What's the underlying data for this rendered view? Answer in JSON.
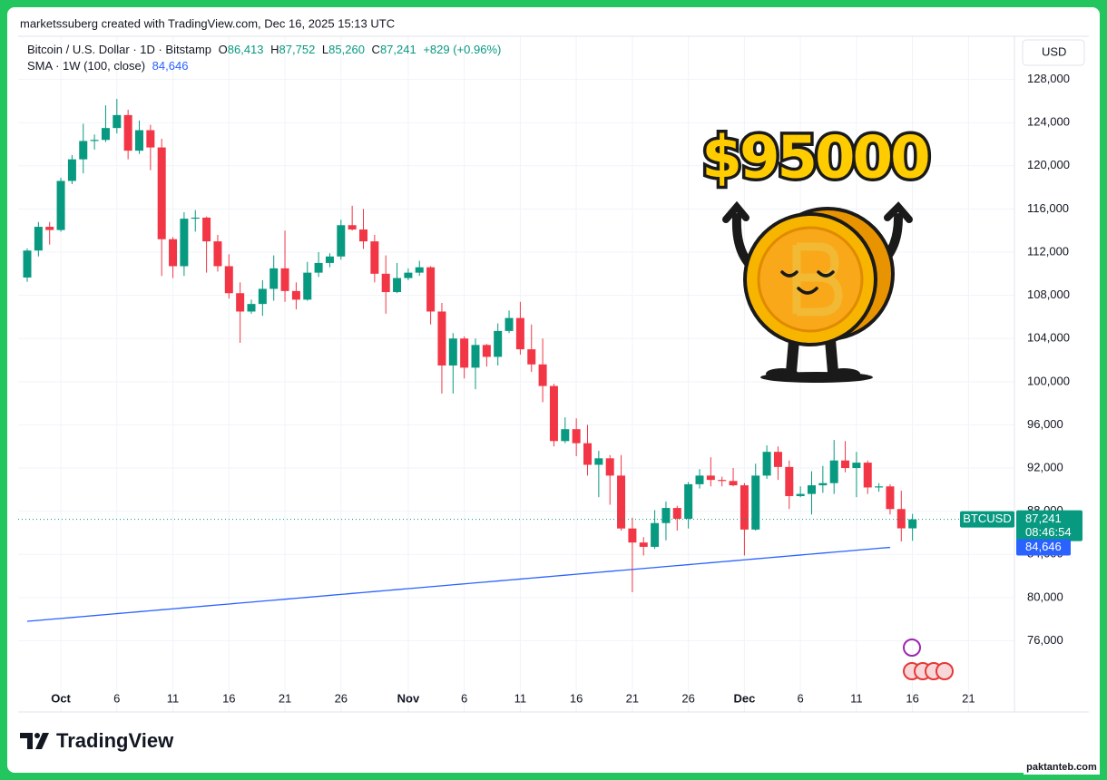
{
  "header": {
    "credit": "marketssuberg created with TradingView.com, Dec 16, 2025 15:13 UTC",
    "currency": "USD",
    "brand": "TradingView",
    "watermark": "paktanteb.com",
    "sticker": "$95000"
  },
  "legend": {
    "symbol": "Bitcoin / U.S. Dollar · 1D · Bitstamp",
    "open_label": "O",
    "open": "86,413",
    "high_label": "H",
    "high": "87,752",
    "low_label": "L",
    "low": "85,260",
    "close_label": "C",
    "close": "87,241",
    "change": "+829 (+0.96%)",
    "sma_value": "84,646"
  },
  "price_tag": {
    "symbol": "BTCUSD",
    "countdown": "08:46:54"
  },
  "chart_data": {
    "type": "candlestick",
    "categories": [
      null,
      null,
      null,
      "Oct",
      null,
      null,
      null,
      null,
      "6",
      null,
      null,
      null,
      null,
      "11",
      null,
      null,
      null,
      null,
      "16",
      null,
      null,
      null,
      null,
      "21",
      null,
      null,
      null,
      null,
      "26",
      null,
      null,
      null,
      null,
      null,
      "Nov",
      null,
      null,
      null,
      null,
      "6",
      null,
      null,
      null,
      null,
      "11",
      null,
      null,
      null,
      null,
      "16",
      null,
      null,
      null,
      null,
      "21",
      null,
      null,
      null,
      null,
      "26",
      null,
      null,
      null,
      null,
      "Dec",
      null,
      null,
      null,
      null,
      "6",
      null,
      null,
      null,
      null,
      "11",
      null,
      null,
      null,
      null,
      "16",
      null,
      null,
      null,
      null,
      "21"
    ],
    "open": [
      109650,
      112150,
      114350,
      114050,
      118600,
      120600,
      122300,
      122400,
      123500,
      124700,
      121400,
      123300,
      121700,
      113200,
      110700,
      115100,
      115200,
      113000,
      110700,
      108200,
      106500,
      107200,
      108600,
      110500,
      108400,
      107600,
      110100,
      111000,
      111600,
      114500,
      114100,
      113000,
      110000,
      108300,
      109600,
      110100,
      110600,
      106500,
      101500,
      104000,
      101300,
      103400,
      102300,
      104700,
      105900,
      103000,
      101600,
      99600,
      94500,
      95600,
      94300,
      92300,
      92900,
      91300,
      86400,
      85100,
      84700,
      86900,
      88300,
      87300,
      90500,
      91300,
      90900,
      90800,
      90400,
      86300,
      91300,
      93500,
      92100,
      89400,
      89600,
      90400,
      90600,
      92700,
      92000,
      92500,
      90200,
      90300,
      88200,
      86413,
      null,
      null,
      null,
      null,
      null
    ],
    "high": [
      112350,
      114800,
      114800,
      118900,
      121000,
      123900,
      122900,
      125600,
      126200,
      125200,
      124200,
      123800,
      122500,
      113400,
      115700,
      115900,
      115300,
      113600,
      111800,
      109200,
      107600,
      109400,
      111700,
      114000,
      109200,
      111100,
      112000,
      111900,
      115000,
      116300,
      116000,
      113600,
      111700,
      111000,
      110500,
      111200,
      110700,
      107300,
      104500,
      104200,
      104000,
      103500,
      105400,
      106600,
      107400,
      105300,
      104000,
      99800,
      96700,
      96600,
      96000,
      93600,
      93200,
      93200,
      87400,
      85600,
      88100,
      88900,
      88500,
      90700,
      91900,
      93000,
      91200,
      92000,
      90600,
      92400,
      94100,
      94000,
      92700,
      90300,
      91700,
      92200,
      94600,
      94500,
      93500,
      92700,
      90600,
      90500,
      89900,
      87752,
      null,
      null,
      null,
      null,
      null
    ],
    "low": [
      109250,
      111600,
      112700,
      113900,
      118300,
      119300,
      121500,
      122200,
      123000,
      120600,
      121100,
      119600,
      109800,
      109600,
      109800,
      113900,
      110100,
      110200,
      107700,
      103600,
      106300,
      106100,
      107500,
      107400,
      106700,
      107500,
      109700,
      110600,
      111300,
      114000,
      112300,
      109200,
      106300,
      108200,
      109400,
      109800,
      105300,
      98900,
      98900,
      100300,
      99300,
      101400,
      101500,
      104500,
      102500,
      100900,
      98100,
      94000,
      94300,
      93100,
      91300,
      89300,
      88600,
      86200,
      80500,
      83900,
      84500,
      85300,
      86200,
      86400,
      90100,
      90300,
      90300,
      90300,
      83900,
      86200,
      91000,
      90900,
      88200,
      89300,
      87700,
      89700,
      89600,
      91600,
      89300,
      89600,
      89800,
      87700,
      85200,
      85260,
      null,
      null,
      null,
      null,
      null
    ],
    "close": [
      112150,
      114350,
      114050,
      118600,
      120600,
      122300,
      122400,
      123500,
      124700,
      121400,
      123300,
      121700,
      113200,
      110700,
      115100,
      115200,
      113000,
      110700,
      108200,
      106500,
      107200,
      108600,
      110500,
      108400,
      107600,
      110100,
      111000,
      111600,
      114500,
      114100,
      113000,
      110000,
      108300,
      109600,
      110100,
      110600,
      106500,
      101500,
      104000,
      101300,
      103400,
      102300,
      104700,
      105900,
      103000,
      101600,
      99600,
      94500,
      95600,
      94300,
      92300,
      92900,
      91300,
      86400,
      85100,
      84700,
      86900,
      88300,
      87300,
      90500,
      91300,
      90900,
      90800,
      90400,
      86300,
      91300,
      93500,
      92100,
      89400,
      89600,
      90400,
      90600,
      92700,
      92000,
      92500,
      90200,
      90300,
      88200,
      86413,
      87241,
      null,
      null,
      null,
      null,
      null
    ],
    "up_color": "#089981",
    "down_color": "#f23645",
    "sma": {
      "name": "SMA · 1W (100, close)",
      "color": "#2962ff",
      "values": [
        77800,
        77889,
        77978,
        78067,
        78156,
        78245,
        78334,
        78423,
        78512,
        78601,
        78690,
        78779,
        78868,
        78957,
        79046,
        79135,
        79224,
        79313,
        79402,
        79491,
        79580,
        79669,
        79758,
        79847,
        79936,
        80025,
        80114,
        80203,
        80292,
        80381,
        80470,
        80559,
        80648,
        80737,
        80826,
        80915,
        81004,
        81093,
        81182,
        81271,
        81360,
        81449,
        81538,
        81627,
        81716,
        81805,
        81894,
        81983,
        82072,
        82161,
        82250,
        82339,
        82428,
        82517,
        82606,
        82695,
        82784,
        82873,
        82962,
        83051,
        83140,
        83229,
        83318,
        83407,
        83496,
        83585,
        83674,
        83763,
        83852,
        83941,
        84030,
        84119,
        84208,
        84297,
        84386,
        84475,
        84564,
        84646,
        null,
        null,
        null,
        null,
        null,
        null,
        null
      ]
    },
    "ylim": [
      69400,
      132000
    ],
    "yticks": [
      {
        "value": 76000,
        "label": "76,000"
      },
      {
        "value": 80000,
        "label": "80,000"
      },
      {
        "value": 84000,
        "label": "84,000"
      },
      {
        "value": 88000,
        "label": "88,000"
      },
      {
        "value": 92000,
        "label": "92,000"
      },
      {
        "value": 96000,
        "label": "96,000"
      },
      {
        "value": 100000,
        "label": "100,000"
      },
      {
        "value": 104000,
        "label": "104,000"
      },
      {
        "value": 108000,
        "label": "108,000"
      },
      {
        "value": 112000,
        "label": "112,000"
      },
      {
        "value": 116000,
        "label": "116,000"
      },
      {
        "value": 120000,
        "label": "120,000"
      },
      {
        "value": 124000,
        "label": "124,000"
      },
      {
        "value": 128000,
        "label": "128,000"
      }
    ],
    "grid": true
  }
}
